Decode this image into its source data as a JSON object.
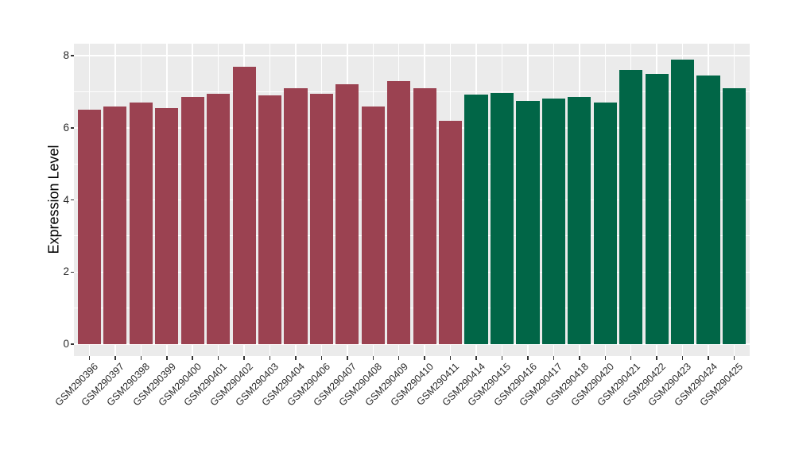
{
  "chart_data": {
    "type": "bar",
    "title": "",
    "xlabel": "",
    "ylabel": "Expression Level",
    "legend": "none",
    "grid": "on",
    "panel_background": "#EBEBEB",
    "grid_color": "#FFFFFF",
    "tick_color": "#333333",
    "axis_text_color": "#2b2b2b",
    "ylim": [
      -0.33,
      8.33
    ],
    "yticks": [
      0,
      2,
      4,
      6,
      8
    ],
    "yticks_minor": [
      1,
      3,
      5,
      7
    ],
    "categories": [
      "GSM290396",
      "GSM290397",
      "GSM290398",
      "GSM290399",
      "GSM290400",
      "GSM290401",
      "GSM290402",
      "GSM290403",
      "GSM290404",
      "GSM290406",
      "GSM290407",
      "GSM290408",
      "GSM290409",
      "GSM290410",
      "GSM290411",
      "GSM290414",
      "GSM290415",
      "GSM290416",
      "GSM290417",
      "GSM290418",
      "GSM290420",
      "GSM290421",
      "GSM290422",
      "GSM290423",
      "GSM290424",
      "GSM290425"
    ],
    "values": [
      6.5,
      6.6,
      6.7,
      6.55,
      6.85,
      6.95,
      7.7,
      6.9,
      7.1,
      6.95,
      7.2,
      6.6,
      7.3,
      7.1,
      6.2,
      6.93,
      6.97,
      6.75,
      6.8,
      6.85,
      6.7,
      7.6,
      7.5,
      7.9,
      7.45,
      7.1
    ],
    "bar_colors": [
      "#9B4251",
      "#9B4251",
      "#9B4251",
      "#9B4251",
      "#9B4251",
      "#9B4251",
      "#9B4251",
      "#9B4251",
      "#9B4251",
      "#9B4251",
      "#9B4251",
      "#9B4251",
      "#9B4251",
      "#9B4251",
      "#9B4251",
      "#016647",
      "#016647",
      "#016647",
      "#016647",
      "#016647",
      "#016647",
      "#016647",
      "#016647",
      "#016647",
      "#016647",
      "#016647"
    ],
    "palette": {
      "maroon": "#9B4251",
      "green": "#016647"
    }
  }
}
